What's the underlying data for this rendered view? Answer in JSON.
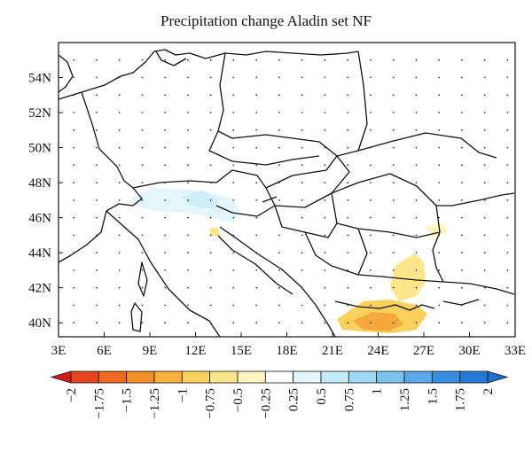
{
  "title": "Precipitation change Aladin set NF",
  "map": {
    "lat_labels": [
      "54N",
      "52N",
      "50N",
      "48N",
      "46N",
      "44N",
      "42N",
      "40N"
    ],
    "lon_labels": [
      "3E",
      "6E",
      "9E",
      "12E",
      "15E",
      "18E",
      "21E",
      "24E",
      "27E",
      "30E",
      "33E"
    ],
    "lat_values": [
      54,
      52,
      50,
      48,
      46,
      44,
      42,
      40
    ],
    "lon_values": [
      3,
      6,
      9,
      12,
      15,
      18,
      21,
      24,
      27,
      30,
      33
    ],
    "coastline_color": "#111111",
    "grid": "dotted"
  },
  "colorbar": {
    "labels": [
      "-2",
      "-1.75",
      "-1.5",
      "-1.25",
      "-1",
      "-0.75",
      "-0.5",
      "-0.25",
      "0.25",
      "0.5",
      "0.75",
      "1",
      "1.25",
      "1.5",
      "1.75",
      "2"
    ],
    "colors": [
      "#d7191c",
      "#e4451f",
      "#ee6a22",
      "#f58f2a",
      "#f9b13d",
      "#fbd15e",
      "#fde68a",
      "#fff6c2",
      "#ffffff",
      "#e3f6fb",
      "#c3ecf7",
      "#9ed8f2",
      "#7cc3ee",
      "#5aa8e8",
      "#3a8ee0",
      "#2478d8",
      "#1f6cd2"
    ]
  },
  "chart_data": {
    "type": "heatmap",
    "title": "Precipitation change Aladin set NF",
    "xlabel": "",
    "ylabel": "",
    "x_ticks": [
      "3E",
      "6E",
      "9E",
      "12E",
      "15E",
      "18E",
      "21E",
      "24E",
      "27E",
      "30E",
      "33E"
    ],
    "y_ticks": [
      "40N",
      "42N",
      "44N",
      "46N",
      "48N",
      "50N",
      "52N",
      "54N"
    ],
    "colorbar_ticks": [
      -2,
      -1.75,
      -1.5,
      -1.25,
      -1,
      -0.75,
      -0.5,
      -0.25,
      0.25,
      0.5,
      0.75,
      1,
      1.25,
      1.5,
      1.75,
      2
    ],
    "xlim": [
      3,
      33
    ],
    "ylim": [
      39.2,
      56
    ]
  }
}
